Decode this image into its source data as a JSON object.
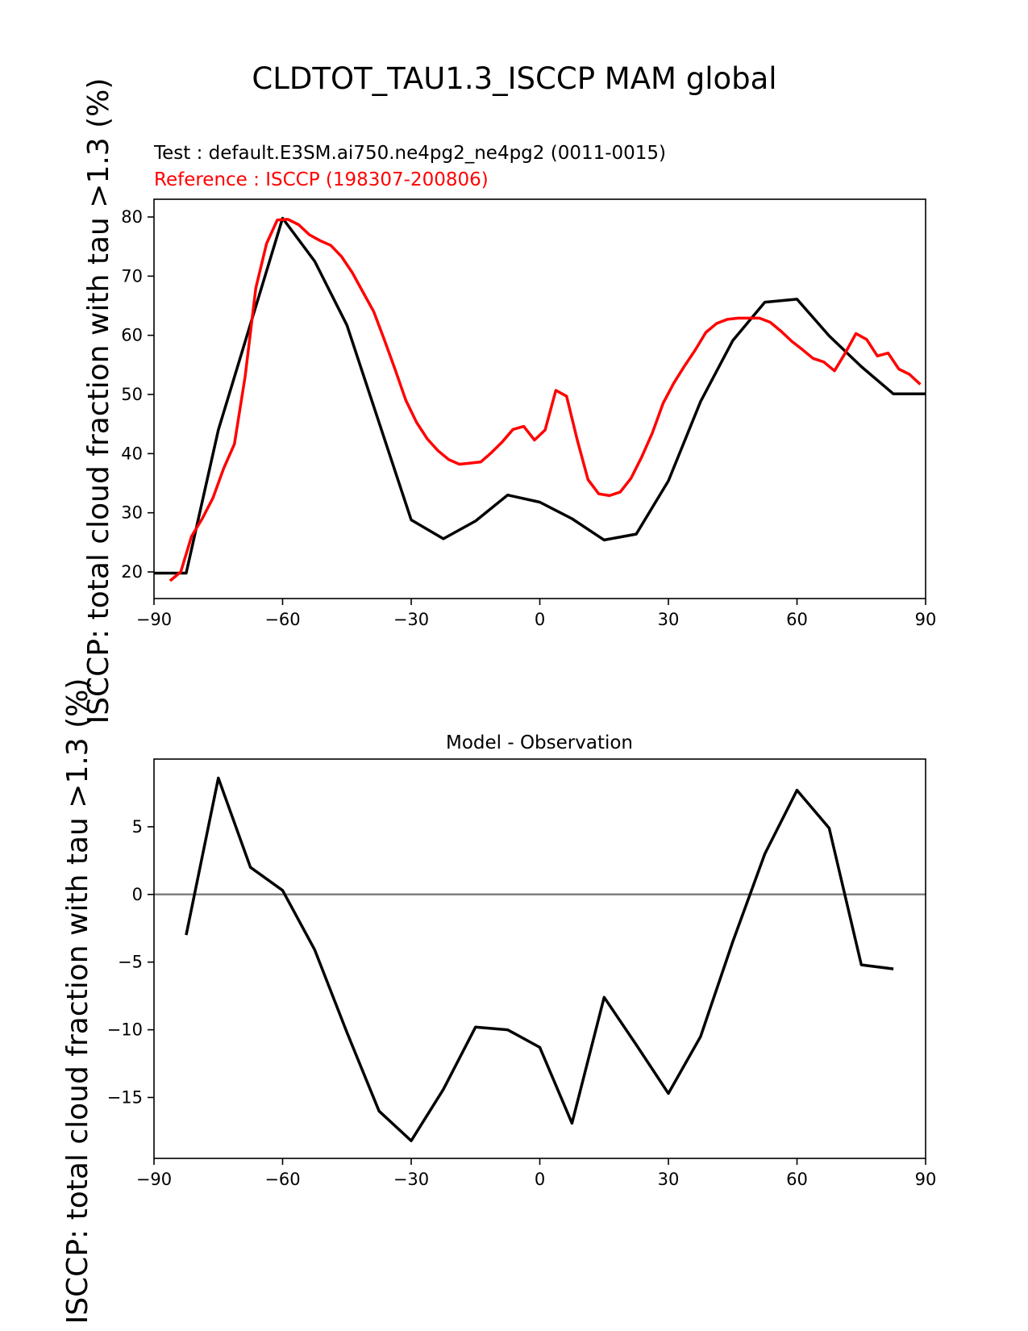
{
  "figure": {
    "title": "CLDTOT_TAU1.3_ISCCP MAM global"
  },
  "chart_data": [
    {
      "type": "line",
      "subtitle_test": "Test : default.E3SM.ai750.ne4pg2_ne4pg2 (0011-0015)",
      "subtitle_reference": "Reference : ISCCP (198307-200806)",
      "ylabel": "ISCCP: total cloud fraction with tau >1.3 (%)",
      "xlim": [
        -90,
        90
      ],
      "ylim": [
        15.5,
        83
      ],
      "xticks": [
        -90,
        -60,
        -30,
        0,
        30,
        60,
        90
      ],
      "yticks": [
        20,
        30,
        40,
        50,
        60,
        70,
        80
      ],
      "grid": false,
      "series": [
        {
          "color": "#000000",
          "points": [
            [
              -90,
              19.8
            ],
            [
              -82.5,
              19.8
            ],
            [
              -75,
              44
            ],
            [
              -60,
              79.8
            ],
            [
              -52.5,
              72.5
            ],
            [
              -45,
              61.7
            ],
            [
              -30,
              28.8
            ],
            [
              -22.5,
              25.6
            ],
            [
              -15,
              28.6
            ],
            [
              -7.5,
              33
            ],
            [
              0,
              31.8
            ],
            [
              7.5,
              29
            ],
            [
              15,
              25.4
            ],
            [
              22.5,
              26.4
            ],
            [
              30,
              35.4
            ],
            [
              37.5,
              48.8
            ],
            [
              45,
              59.1
            ],
            [
              52.5,
              65.6
            ],
            [
              60,
              66.1
            ],
            [
              67.5,
              59.9
            ],
            [
              75,
              54.7
            ],
            [
              82.5,
              50.1
            ],
            [
              90,
              50.1
            ]
          ]
        },
        {
          "color": "#ff0000",
          "points": [
            [
              -86.25,
              18.5
            ],
            [
              -83.75,
              20
            ],
            [
              -81.25,
              26
            ],
            [
              -78.75,
              29
            ],
            [
              -76.25,
              32.5
            ],
            [
              -73.75,
              37.5
            ],
            [
              -71.25,
              41.6
            ],
            [
              -68.75,
              53
            ],
            [
              -66.25,
              68
            ],
            [
              -63.75,
              75.5
            ],
            [
              -61.25,
              79.5
            ],
            [
              -58.75,
              79.6
            ],
            [
              -56.25,
              78.7
            ],
            [
              -53.75,
              77
            ],
            [
              -51.25,
              76
            ],
            [
              -48.75,
              75.2
            ],
            [
              -46.25,
              73.3
            ],
            [
              -43.75,
              70.6
            ],
            [
              -41.25,
              67.3
            ],
            [
              -38.75,
              64
            ],
            [
              -36.25,
              59.2
            ],
            [
              -33.75,
              54.2
            ],
            [
              -31.25,
              49
            ],
            [
              -28.75,
              45.3
            ],
            [
              -26.25,
              42.5
            ],
            [
              -23.75,
              40.5
            ],
            [
              -21.25,
              39
            ],
            [
              -18.75,
              38.2
            ],
            [
              -16.25,
              38.4
            ],
            [
              -13.75,
              38.6
            ],
            [
              -11.25,
              40.2
            ],
            [
              -8.75,
              42
            ],
            [
              -6.25,
              44.1
            ],
            [
              -3.75,
              44.6
            ],
            [
              -1.25,
              42.3
            ],
            [
              1.25,
              44
            ],
            [
              3.75,
              50.7
            ],
            [
              6.25,
              49.7
            ],
            [
              8.75,
              42.3
            ],
            [
              11.25,
              35.6
            ],
            [
              13.75,
              33.2
            ],
            [
              16.25,
              32.9
            ],
            [
              18.75,
              33.5
            ],
            [
              21.25,
              35.8
            ],
            [
              23.75,
              39.4
            ],
            [
              26.25,
              43.5
            ],
            [
              28.75,
              48.5
            ],
            [
              31.25,
              51.9
            ],
            [
              33.75,
              54.8
            ],
            [
              36.25,
              57.5
            ],
            [
              38.75,
              60.5
            ],
            [
              41.25,
              62
            ],
            [
              43.75,
              62.7
            ],
            [
              46.25,
              62.9
            ],
            [
              48.75,
              62.9
            ],
            [
              51.25,
              62.9
            ],
            [
              53.75,
              62.2
            ],
            [
              56.25,
              60.7
            ],
            [
              58.75,
              59
            ],
            [
              61.25,
              57.6
            ],
            [
              63.75,
              56.1
            ],
            [
              66.25,
              55.5
            ],
            [
              68.75,
              54
            ],
            [
              71.25,
              57
            ],
            [
              73.75,
              60.3
            ],
            [
              76.25,
              59.3
            ],
            [
              78.75,
              56.5
            ],
            [
              81.25,
              57
            ],
            [
              83.75,
              54.3
            ],
            [
              86.25,
              53.4
            ],
            [
              88.75,
              51.7
            ]
          ]
        }
      ]
    },
    {
      "type": "line",
      "title": "Model - Observation",
      "ylabel": "ISCCP: total cloud fraction with tau >1.3 (%)",
      "xlim": [
        -90,
        90
      ],
      "ylim": [
        -19.5,
        10
      ],
      "xticks": [
        -90,
        -60,
        -30,
        0,
        30,
        60,
        90
      ],
      "yticks": [
        -15,
        -10,
        -5,
        0,
        5
      ],
      "grid": false,
      "zero_line_color": "#808080",
      "series": [
        {
          "color": "#000000",
          "points": [
            [
              -82.5,
              -3
            ],
            [
              -75,
              8.6
            ],
            [
              -67.5,
              2
            ],
            [
              -60,
              0.3
            ],
            [
              -52.5,
              -4.1
            ],
            [
              -45,
              -10.2
            ],
            [
              -37.5,
              -16
            ],
            [
              -30,
              -18.2
            ],
            [
              -22.5,
              -14.4
            ],
            [
              -15,
              -9.8
            ],
            [
              -7.5,
              -10
            ],
            [
              0,
              -11.3
            ],
            [
              7.5,
              -16.9
            ],
            [
              15,
              -7.6
            ],
            [
              22.5,
              -11.1
            ],
            [
              30,
              -14.7
            ],
            [
              37.5,
              -10.5
            ],
            [
              45,
              -3.5
            ],
            [
              52.5,
              3
            ],
            [
              60,
              7.7
            ],
            [
              67.5,
              4.9
            ],
            [
              75,
              -5.2
            ],
            [
              82.5,
              -5.5
            ]
          ]
        }
      ]
    }
  ]
}
